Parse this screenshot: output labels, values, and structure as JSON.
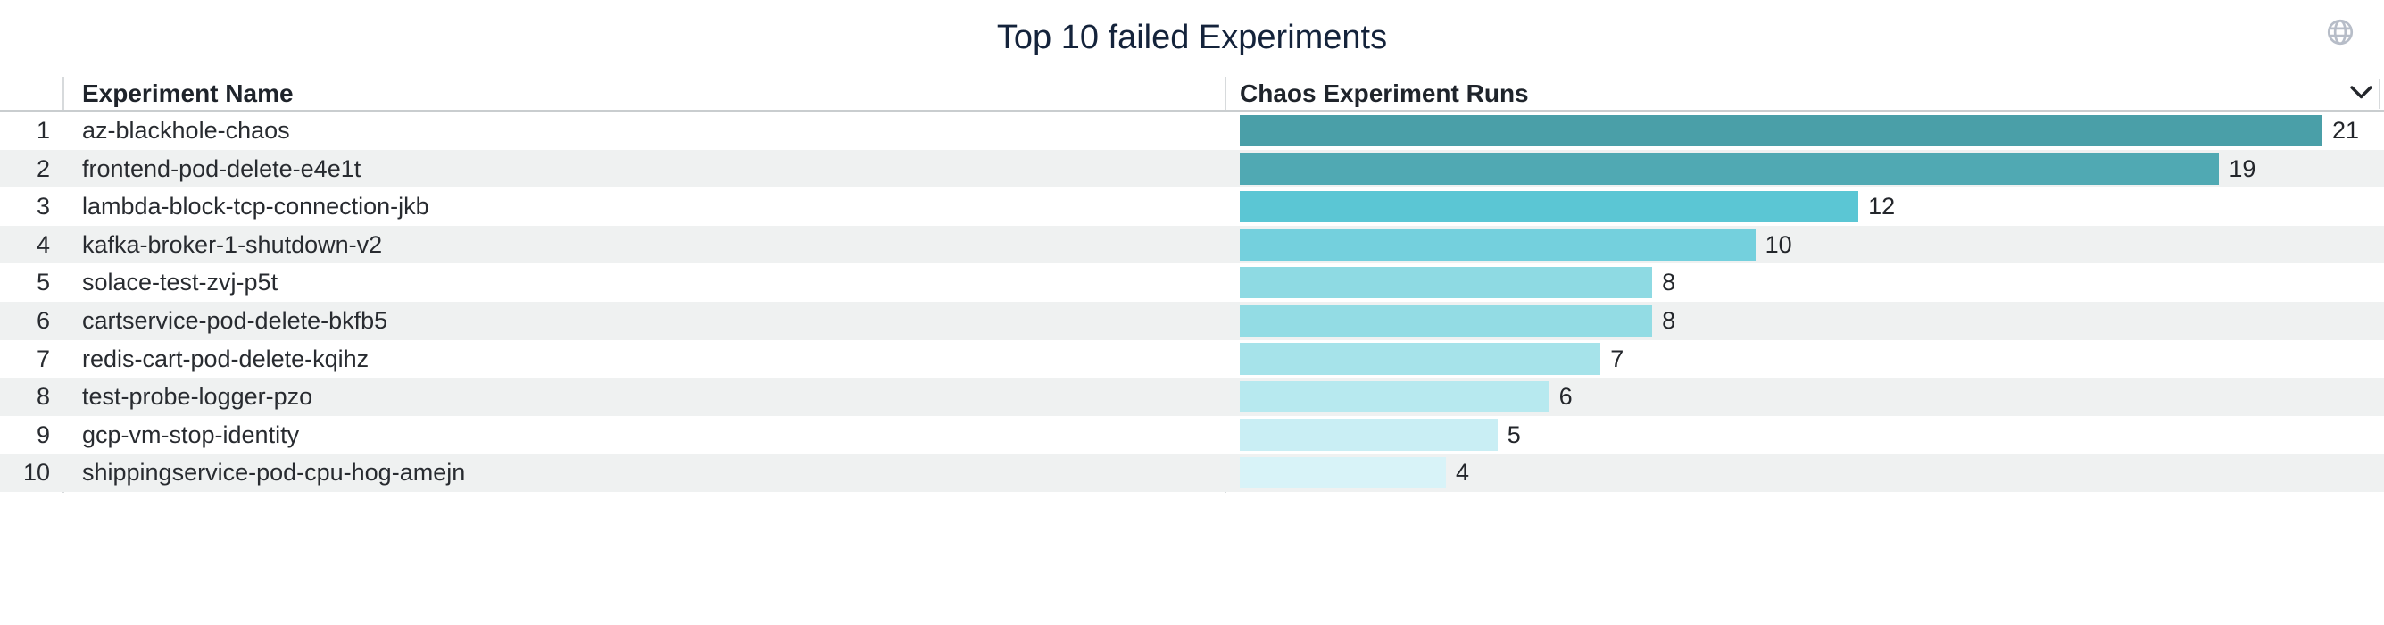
{
  "title": "Top 10 failed Experiments",
  "header": {
    "columns": [
      {
        "label": "Experiment Name"
      },
      {
        "label": "Chaos Experiment Runs"
      }
    ],
    "icons": {
      "globe": "globe-icon",
      "sort": "chevron-down-icon"
    }
  },
  "table": {
    "rows": [
      {
        "rank": "1",
        "name": "az-blackhole-chaos",
        "runs": "21",
        "bar_color": "#4A9FA8"
      },
      {
        "rank": "2",
        "name": "frontend-pod-delete-e4e1t",
        "runs": "19",
        "bar_color": "#50A9B3"
      },
      {
        "rank": "3",
        "name": "lambda-block-tcp-connection-jkb",
        "runs": "12",
        "bar_color": "#5BC6D4"
      },
      {
        "rank": "4",
        "name": "kafka-broker-1-shutdown-v2",
        "runs": "10",
        "bar_color": "#74D0DD"
      },
      {
        "rank": "5",
        "name": "solace-test-zvj-p5t",
        "runs": "8",
        "bar_color": "#8EDAE3"
      },
      {
        "rank": "6",
        "name": "cartservice-pod-delete-bkfb5",
        "runs": "8",
        "bar_color": "#93DCE4"
      },
      {
        "rank": "7",
        "name": "redis-cart-pod-delete-kqihz",
        "runs": "7",
        "bar_color": "#A6E3EA"
      },
      {
        "rank": "8",
        "name": "test-probe-logger-pzo",
        "runs": "6",
        "bar_color": "#B7E9EF"
      },
      {
        "rank": "9",
        "name": "gcp-vm-stop-identity",
        "runs": "5",
        "bar_color": "#C9EEF4"
      },
      {
        "rank": "10",
        "name": "shippingservice-pod-cpu-hog-amejn",
        "runs": "4",
        "bar_color": "#D8F3F8"
      }
    ]
  },
  "colors": {
    "title_text": "#14233B",
    "header_text": "#1F242B",
    "cell_text": "#282B30",
    "stripe": "#EFF1F1",
    "header_divider": "#C9CDCF",
    "column_divider": "#D7DADC",
    "globe_icon": "#B7BDC8",
    "chevron_icon": "#23262B"
  },
  "chart_data": {
    "type": "bar",
    "orientation": "horizontal",
    "title": "Top 10 failed Experiments",
    "value_axis_label": "Chaos Experiment Runs",
    "category_axis_label": "Experiment Name",
    "categories": [
      "az-blackhole-chaos",
      "frontend-pod-delete-e4e1t",
      "lambda-block-tcp-connection-jkb",
      "kafka-broker-1-shutdown-v2",
      "solace-test-zvj-p5t",
      "cartservice-pod-delete-bkfb5",
      "redis-cart-pod-delete-kqihz",
      "test-probe-logger-pzo",
      "gcp-vm-stop-identity",
      "shippingservice-pod-cpu-hog-amejn"
    ],
    "values": [
      21,
      19,
      12,
      10,
      8,
      8,
      7,
      6,
      5,
      4
    ],
    "data_labels": "shown at bar end",
    "xlim": [
      0,
      21.3
    ],
    "grid": "off",
    "legend": "none",
    "bar_colors": [
      "#4A9FA8",
      "#50A9B3",
      "#5BC6D4",
      "#74D0DD",
      "#8EDAE3",
      "#93DCE4",
      "#A6E3EA",
      "#B7E9EF",
      "#C9EEF4",
      "#D8F3F8"
    ]
  }
}
